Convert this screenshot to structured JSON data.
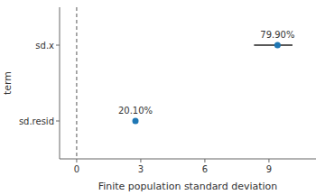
{
  "chart_data": {
    "type": "errorbar",
    "orientation": "horizontal",
    "categories": [
      "sd.x",
      "sd.resid"
    ],
    "values": [
      9.4,
      2.75
    ],
    "error_low": [
      1.1,
      0.0
    ],
    "error_high": [
      0.7,
      0.0
    ],
    "annotations": [
      "79.90%",
      "20.10%"
    ],
    "reference_line": 0,
    "x_label": "Finite population standard deviation",
    "y_label": "term",
    "xlim": [
      -0.8,
      11.2
    ],
    "xticks": [
      0,
      3,
      6,
      9
    ],
    "grid": false
  }
}
